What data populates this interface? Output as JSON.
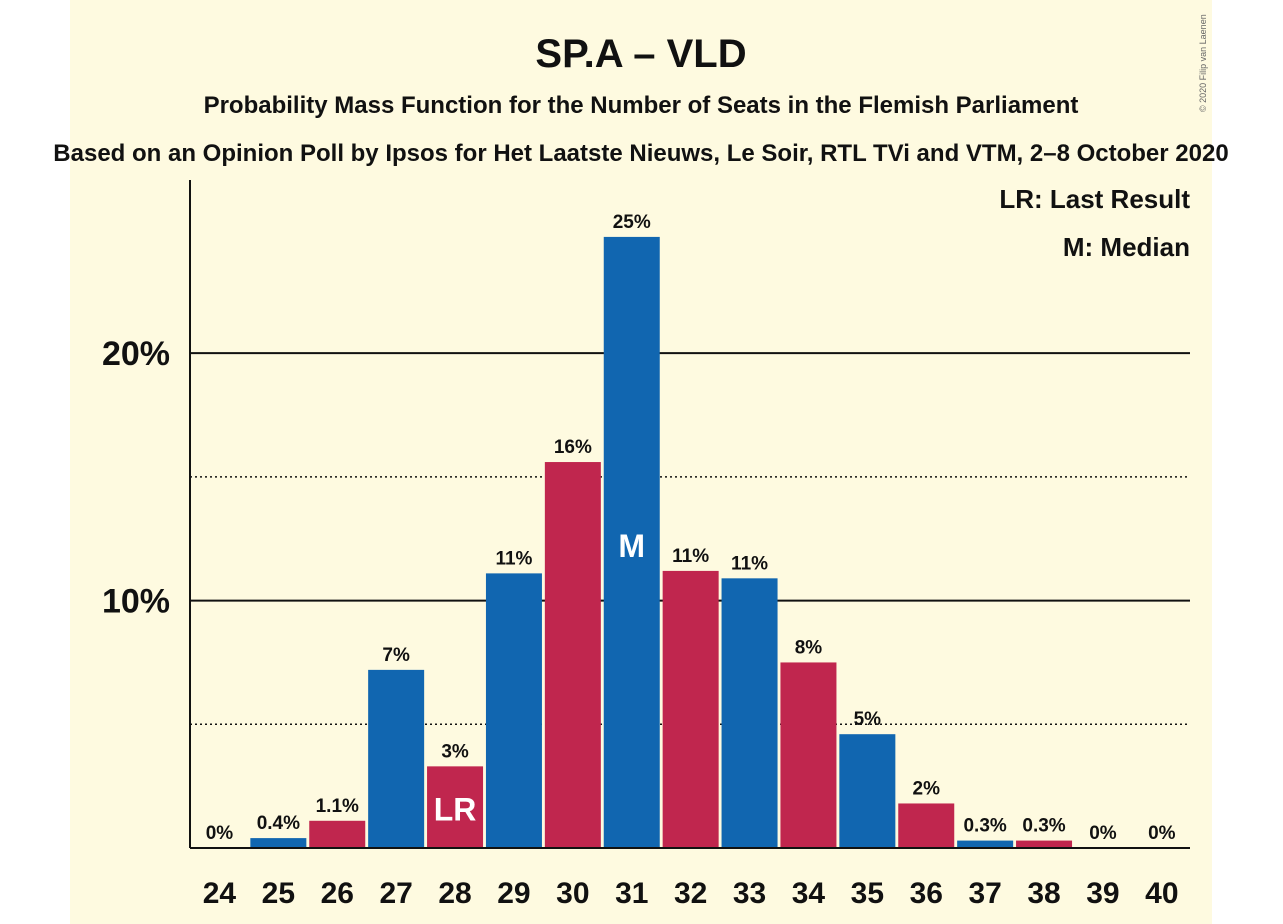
{
  "chart_data": {
    "type": "bar",
    "title": "SP.A – VLD",
    "subtitle": "Probability Mass Function for the Number of Seats in the Flemish Parliament",
    "subtitle2": "Based on an Opinion Poll by Ipsos for Het Laatste Nieuws, Le Soir, RTL TVi and VTM, 2–8 October 2020",
    "copyright": "© 2020 Filip van Laenen",
    "categories": [
      "24",
      "25",
      "26",
      "27",
      "28",
      "29",
      "30",
      "31",
      "32",
      "33",
      "34",
      "35",
      "36",
      "37",
      "38",
      "39",
      "40"
    ],
    "values": [
      0,
      0.4,
      1.1,
      7.2,
      3.3,
      11.1,
      15.6,
      24.7,
      11.2,
      10.9,
      7.5,
      4.6,
      1.8,
      0.3,
      0.3,
      0,
      0
    ],
    "data_labels": [
      "0%",
      "0.4%",
      "1.1%",
      "7%",
      "3%",
      "11%",
      "16%",
      "25%",
      "11%",
      "11%",
      "8%",
      "5%",
      "2%",
      "0.3%",
      "0.3%",
      "0%",
      "0%"
    ],
    "bar_colors": [
      "#1166b0",
      "#1166b0",
      "#c0264e",
      "#1166b0",
      "#c0264e",
      "#1166b0",
      "#c0264e",
      "#1166b0",
      "#c0264e",
      "#1166b0",
      "#c0264e",
      "#1166b0",
      "#c0264e",
      "#1166b0",
      "#c0264e",
      "#1166b0",
      "#c0264e"
    ],
    "ylim": [
      0,
      27
    ],
    "yticks": [
      {
        "value": 10,
        "label": "10%",
        "style": "solid"
      },
      {
        "value": 20,
        "label": "20%",
        "style": "solid"
      }
    ],
    "minor_gridlines": [
      5,
      15
    ],
    "bar_annotations": [
      {
        "category": "28",
        "text": "LR"
      },
      {
        "category": "31",
        "text": "M"
      }
    ],
    "legend": [
      "LR: Last Result",
      "M: Median"
    ],
    "legend_position": "top-right",
    "colors": {
      "blue": "#1166b0",
      "red": "#c0264e",
      "background": "#fefae0",
      "text": "#111111"
    }
  }
}
